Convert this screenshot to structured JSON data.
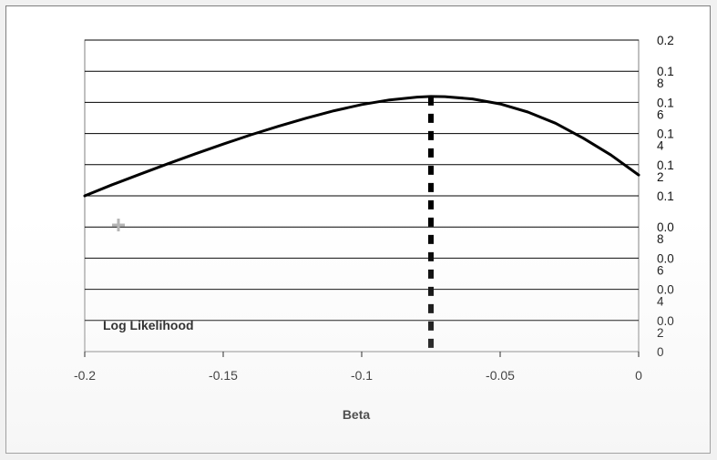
{
  "chart_data": {
    "type": "line",
    "title": "",
    "xlabel": "Beta",
    "ylabel": "Log Likelihood",
    "xlim": [
      -0.2,
      0
    ],
    "x_ticks": [
      "-0.2",
      "-0.15",
      "-0.1",
      "-0.05",
      "0"
    ],
    "x_tick_values": [
      -0.2,
      -0.15,
      -0.1,
      -0.05,
      0
    ],
    "y_tick_labels": [
      [
        "0"
      ],
      [
        "0.0",
        "2"
      ],
      [
        "0.0",
        "4"
      ],
      [
        "0.0",
        "6"
      ],
      [
        "0.0",
        "8"
      ],
      [
        "0.1"
      ],
      [
        "0.1",
        "2"
      ],
      [
        "0.1",
        "4"
      ],
      [
        "0.1",
        "6"
      ],
      [
        "0.1",
        "8"
      ],
      [
        "0.2"
      ]
    ],
    "y_tick_values": [
      0,
      0.02,
      0.04,
      0.06,
      0.08,
      0.1,
      0.12,
      0.14,
      0.16,
      0.18,
      0.2
    ],
    "ylim": [
      0,
      0.2
    ],
    "grid": "horizontal",
    "series": [
      {
        "color": "#000000",
        "x": [
          -0.2,
          -0.19,
          -0.18,
          -0.17,
          -0.16,
          -0.15,
          -0.14,
          -0.13,
          -0.12,
          -0.11,
          -0.1,
          -0.09,
          -0.08,
          -0.075,
          -0.07,
          -0.06,
          -0.05,
          -0.04,
          -0.03,
          -0.02,
          -0.01,
          0
        ],
        "y": [
          0.1,
          0.1072,
          0.1139,
          0.1206,
          0.127,
          0.1332,
          0.1392,
          0.1447,
          0.1499,
          0.1546,
          0.1586,
          0.1616,
          0.1634,
          0.1638,
          0.1637,
          0.1622,
          0.159,
          0.1538,
          0.1466,
          0.137,
          0.1262,
          0.1134
        ]
      }
    ],
    "reference_line": {
      "x": -0.075,
      "style": "dashed",
      "color": "#000000"
    }
  }
}
